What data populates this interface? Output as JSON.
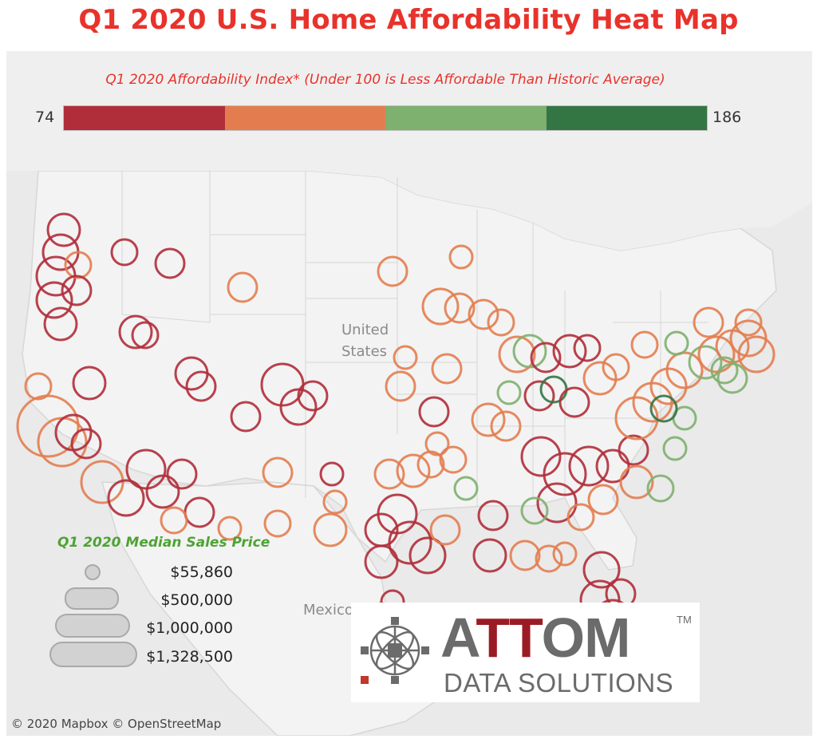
{
  "title": "Q1 2020 U.S. Home Affordability Heat Map",
  "colors": {
    "title": "#e8322b",
    "legend_title": "#e8322b",
    "size_title": "#4ea235",
    "very_low": "#b02e3a",
    "low": "#e37d4f",
    "high": "#7eb06f",
    "very_high": "#347544",
    "map_background": "#eaeaea",
    "land": "#f3f3f3"
  },
  "color_legend": {
    "title": "Q1 2020 Affordability Index* (Under 100 is Less Affordable Than Historic Average)",
    "min": "74",
    "max": "186"
  },
  "map_labels": {
    "country_us_line1": "United",
    "country_us_line2": "States",
    "country_mexico": "Mexico"
  },
  "size_legend": {
    "title": "Q1 2020 Median Sales Price",
    "items": [
      {
        "label": "$55,860"
      },
      {
        "label": "$500,000"
      },
      {
        "label": "$1,000,000"
      },
      {
        "label": "$1,328,500"
      }
    ]
  },
  "logo": {
    "name_part1": "A",
    "name_part2": "TT",
    "name_part3": "OM",
    "trademark": "TM",
    "subtitle": "DATA SOLUTIONS"
  },
  "attribution": "© 2020 Mapbox  © OpenStreetMap"
}
